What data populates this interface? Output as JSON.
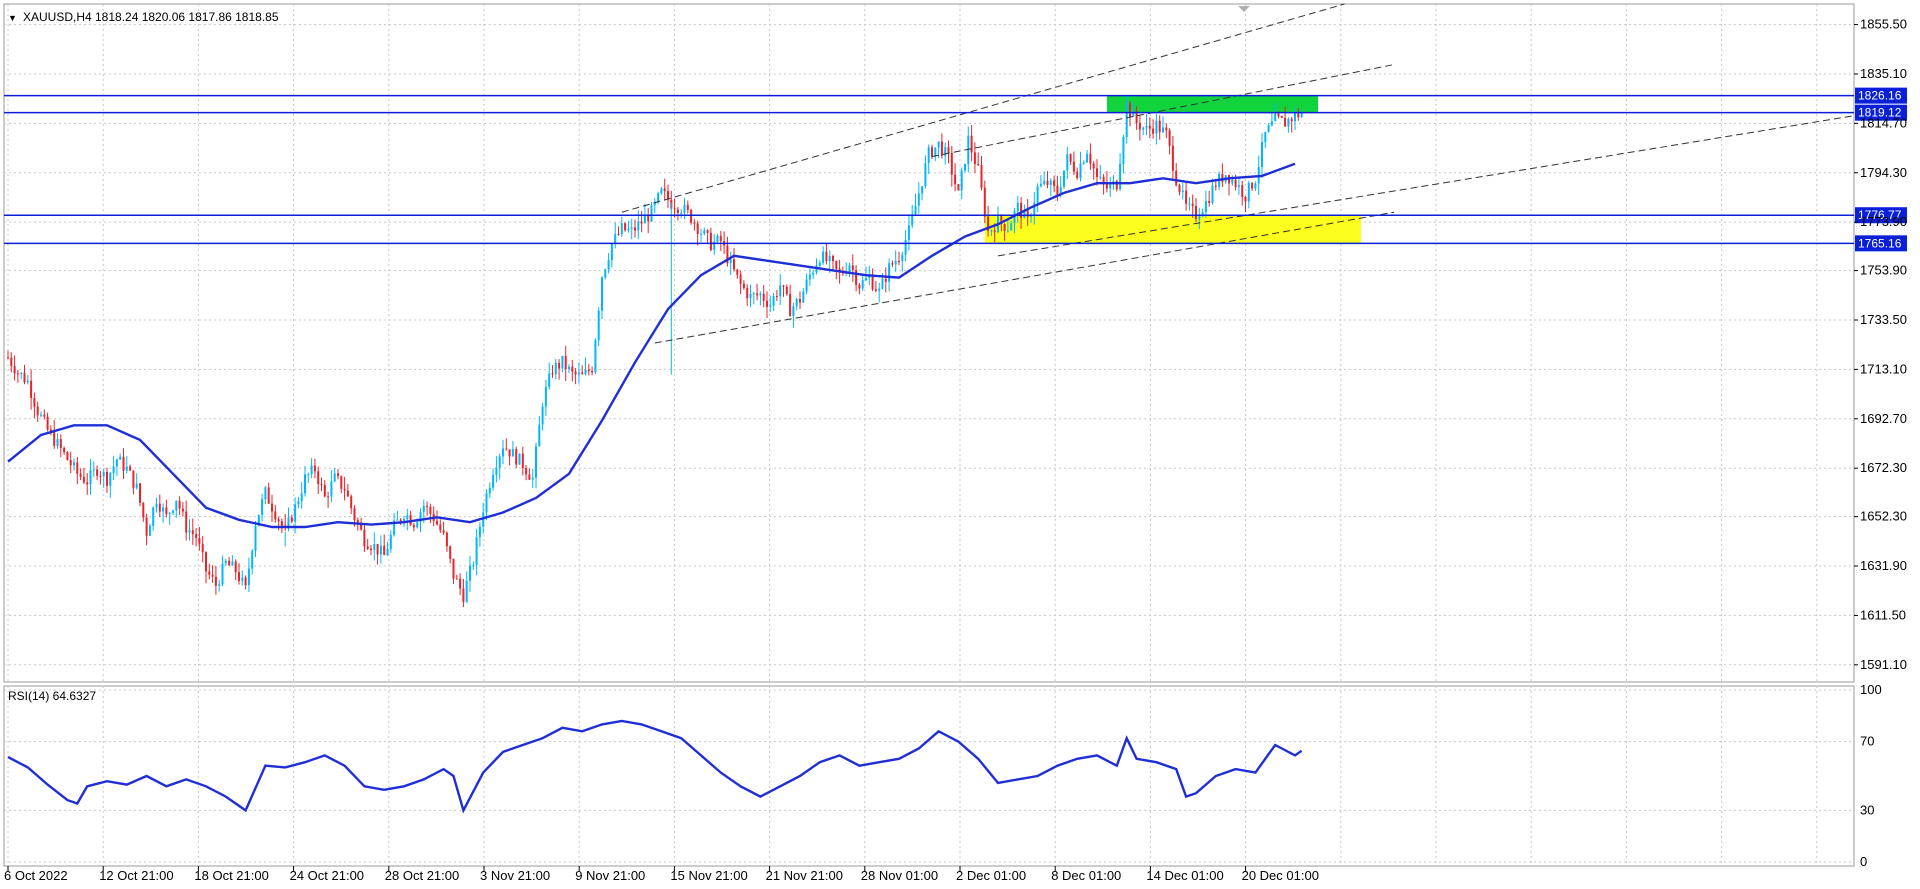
{
  "header": {
    "menu_glyph": "▼",
    "symbol": "XAUUSD,H4",
    "ohlc": "1818.24 1820.06 1817.86 1818.85"
  },
  "indicator": {
    "label": "RSI(14) 64.6327",
    "levels": [
      "100",
      "70",
      "30",
      "0"
    ],
    "level_values": [
      100,
      70,
      30,
      0
    ],
    "value": 64.6327
  },
  "price_axis": {
    "ticks": [
      "1855.50",
      "1835.10",
      "1814.70",
      "1794.30",
      "1773.90",
      "1753.90",
      "1733.50",
      "1713.10",
      "1692.70",
      "1672.30",
      "1652.30",
      "1631.90",
      "1611.50",
      "1591.10"
    ],
    "tick_values": [
      1855.5,
      1835.1,
      1814.7,
      1794.3,
      1773.9,
      1753.9,
      1733.5,
      1713.1,
      1692.7,
      1672.3,
      1652.3,
      1631.9,
      1611.5,
      1591.1
    ]
  },
  "horizontal_lines": [
    {
      "label": "1826.16",
      "price": 1826.16
    },
    {
      "label": "1819.12",
      "price": 1819.12
    },
    {
      "label": "1776.77",
      "price": 1776.77
    },
    {
      "label": "1765.16",
      "price": 1765.16
    }
  ],
  "time_axis": {
    "labels": [
      "6 Oct 2022",
      "12 Oct 21:00",
      "18 Oct 21:00",
      "24 Oct 21:00",
      "28 Oct 21:00",
      "3 Nov 21:00",
      "9 Nov 21:00",
      "15 Nov 21:00",
      "21 Nov 21:00",
      "28 Nov 01:00",
      "2 Dec 01:00",
      "8 Dec 01:00",
      "14 Dec 01:00",
      "20 Dec 01:00"
    ]
  },
  "colors": {
    "bull": "#00b7ff",
    "bear": "#e8232a",
    "ma": "#1f2ed6",
    "level_line": "#0a1fd8",
    "supply_zone": "#11d43d",
    "demand_zone": "#fcff1c",
    "grid": "#c8c8c8",
    "rsi": "#1f2ed6"
  },
  "chart_data": {
    "type": "candlestick",
    "symbol": "XAUUSD",
    "timeframe": "H4",
    "last_ohlc": {
      "open": 1818.24,
      "high": 1820.06,
      "low": 1817.86,
      "close": 1818.85
    },
    "y_range": [
      1584,
      1864
    ],
    "rsi_range": [
      0,
      100
    ],
    "close_path": [
      [
        0,
        1718
      ],
      [
        3,
        1712
      ],
      [
        6,
        1708
      ],
      [
        9,
        1696
      ],
      [
        12,
        1688
      ],
      [
        15,
        1682
      ],
      [
        18,
        1676
      ],
      [
        21,
        1670
      ],
      [
        24,
        1667
      ],
      [
        27,
        1672
      ],
      [
        30,
        1668
      ],
      [
        33,
        1676
      ],
      [
        36,
        1672
      ],
      [
        39,
        1664
      ],
      [
        42,
        1646
      ],
      [
        45,
        1660
      ],
      [
        48,
        1652
      ],
      [
        51,
        1660
      ],
      [
        54,
        1648
      ],
      [
        57,
        1644
      ],
      [
        60,
        1630
      ],
      [
        63,
        1624
      ],
      [
        66,
        1633
      ],
      [
        69,
        1630
      ],
      [
        72,
        1622
      ],
      [
        75,
        1650
      ],
      [
        78,
        1662
      ],
      [
        81,
        1654
      ],
      [
        84,
        1646
      ],
      [
        87,
        1656
      ],
      [
        90,
        1668
      ],
      [
        93,
        1672
      ],
      [
        96,
        1660
      ],
      [
        99,
        1668
      ],
      [
        102,
        1664
      ],
      [
        105,
        1652
      ],
      [
        108,
        1643
      ],
      [
        111,
        1640
      ],
      [
        114,
        1636
      ],
      [
        117,
        1648
      ],
      [
        120,
        1654
      ],
      [
        123,
        1650
      ],
      [
        126,
        1657
      ],
      [
        129,
        1652
      ],
      [
        132,
        1644
      ],
      [
        135,
        1628
      ],
      [
        138,
        1620
      ],
      [
        141,
        1634
      ],
      [
        144,
        1656
      ],
      [
        147,
        1672
      ],
      [
        150,
        1682
      ],
      [
        153,
        1678
      ],
      [
        156,
        1674
      ],
      [
        159,
        1668
      ],
      [
        162,
        1700
      ],
      [
        165,
        1713
      ],
      [
        168,
        1716
      ],
      [
        171,
        1711
      ],
      [
        174,
        1710
      ],
      [
        177,
        1714
      ],
      [
        180,
        1752
      ],
      [
        183,
        1765
      ],
      [
        186,
        1771
      ],
      [
        189,
        1770
      ],
      [
        192,
        1774
      ],
      [
        195,
        1778
      ],
      [
        198,
        1786
      ],
      [
        201,
        1782
      ],
      [
        204,
        1780
      ],
      [
        207,
        1776
      ],
      [
        210,
        1770
      ],
      [
        213,
        1765
      ],
      [
        216,
        1766
      ],
      [
        219,
        1756
      ],
      [
        222,
        1748
      ],
      [
        225,
        1743
      ],
      [
        228,
        1744
      ],
      [
        231,
        1740
      ],
      [
        234,
        1748
      ],
      [
        237,
        1738
      ],
      [
        240,
        1742
      ],
      [
        243,
        1752
      ],
      [
        246,
        1760
      ],
      [
        249,
        1757
      ],
      [
        252,
        1752
      ],
      [
        255,
        1757
      ],
      [
        258,
        1748
      ],
      [
        261,
        1751
      ],
      [
        264,
        1745
      ],
      [
        267,
        1755
      ],
      [
        270,
        1760
      ],
      [
        273,
        1770
      ],
      [
        276,
        1786
      ],
      [
        279,
        1802
      ],
      [
        282,
        1806
      ],
      [
        285,
        1800
      ],
      [
        288,
        1785
      ],
      [
        291,
        1808
      ],
      [
        294,
        1795
      ],
      [
        297,
        1770
      ],
      [
        300,
        1774
      ],
      [
        303,
        1772
      ],
      [
        306,
        1780
      ],
      [
        309,
        1774
      ],
      [
        312,
        1788
      ],
      [
        315,
        1790
      ],
      [
        318,
        1786
      ],
      [
        321,
        1800
      ],
      [
        324,
        1795
      ],
      [
        327,
        1804
      ],
      [
        330,
        1792
      ],
      [
        333,
        1788
      ],
      [
        336,
        1790
      ],
      [
        339,
        1822
      ],
      [
        342,
        1815
      ],
      [
        345,
        1812
      ],
      [
        348,
        1814
      ],
      [
        351,
        1810
      ],
      [
        354,
        1792
      ],
      [
        357,
        1780
      ],
      [
        360,
        1777
      ],
      [
        363,
        1782
      ],
      [
        366,
        1790
      ],
      [
        369,
        1794
      ],
      [
        372,
        1790
      ],
      [
        375,
        1785
      ],
      [
        378,
        1792
      ],
      [
        381,
        1810
      ],
      [
        384,
        1816
      ],
      [
        387,
        1815
      ],
      [
        390,
        1818
      ],
      [
        392,
        1818.85
      ]
    ],
    "moving_average_path": [
      [
        0,
        1675
      ],
      [
        10,
        1686
      ],
      [
        20,
        1690
      ],
      [
        30,
        1690
      ],
      [
        40,
        1684
      ],
      [
        50,
        1670
      ],
      [
        60,
        1656
      ],
      [
        70,
        1651
      ],
      [
        80,
        1648
      ],
      [
        90,
        1648
      ],
      [
        100,
        1650
      ],
      [
        110,
        1649
      ],
      [
        120,
        1650
      ],
      [
        130,
        1652
      ],
      [
        140,
        1650
      ],
      [
        150,
        1654
      ],
      [
        160,
        1660
      ],
      [
        170,
        1670
      ],
      [
        180,
        1692
      ],
      [
        190,
        1716
      ],
      [
        200,
        1738
      ],
      [
        210,
        1752
      ],
      [
        220,
        1760
      ],
      [
        230,
        1758
      ],
      [
        240,
        1756
      ],
      [
        250,
        1754
      ],
      [
        260,
        1752
      ],
      [
        270,
        1751
      ],
      [
        280,
        1760
      ],
      [
        290,
        1768
      ],
      [
        300,
        1773
      ],
      [
        310,
        1780
      ],
      [
        320,
        1786
      ],
      [
        330,
        1790
      ],
      [
        340,
        1790
      ],
      [
        350,
        1792
      ],
      [
        360,
        1790
      ],
      [
        370,
        1792
      ],
      [
        380,
        1793
      ],
      [
        390,
        1798
      ]
    ],
    "rsi_path": [
      [
        0,
        61
      ],
      [
        6,
        55
      ],
      [
        12,
        45
      ],
      [
        18,
        36
      ],
      [
        21,
        34
      ],
      [
        24,
        44
      ],
      [
        30,
        47
      ],
      [
        36,
        45
      ],
      [
        42,
        50
      ],
      [
        48,
        44
      ],
      [
        54,
        48
      ],
      [
        60,
        44
      ],
      [
        66,
        38
      ],
      [
        72,
        30
      ],
      [
        78,
        56
      ],
      [
        84,
        55
      ],
      [
        90,
        58
      ],
      [
        96,
        62
      ],
      [
        102,
        56
      ],
      [
        108,
        44
      ],
      [
        114,
        42
      ],
      [
        120,
        44
      ],
      [
        126,
        48
      ],
      [
        132,
        54
      ],
      [
        135,
        50
      ],
      [
        138,
        30
      ],
      [
        144,
        52
      ],
      [
        150,
        64
      ],
      [
        156,
        68
      ],
      [
        162,
        72
      ],
      [
        168,
        78
      ],
      [
        174,
        76
      ],
      [
        180,
        80
      ],
      [
        186,
        82
      ],
      [
        192,
        80
      ],
      [
        198,
        76
      ],
      [
        204,
        72
      ],
      [
        210,
        62
      ],
      [
        216,
        52
      ],
      [
        222,
        44
      ],
      [
        228,
        38
      ],
      [
        234,
        44
      ],
      [
        240,
        50
      ],
      [
        246,
        58
      ],
      [
        252,
        62
      ],
      [
        258,
        56
      ],
      [
        264,
        58
      ],
      [
        270,
        60
      ],
      [
        276,
        66
      ],
      [
        282,
        76
      ],
      [
        288,
        70
      ],
      [
        294,
        60
      ],
      [
        300,
        46
      ],
      [
        306,
        48
      ],
      [
        312,
        50
      ],
      [
        318,
        56
      ],
      [
        324,
        60
      ],
      [
        330,
        62
      ],
      [
        336,
        56
      ],
      [
        339,
        72
      ],
      [
        342,
        60
      ],
      [
        348,
        58
      ],
      [
        354,
        54
      ],
      [
        357,
        38
      ],
      [
        360,
        40
      ],
      [
        366,
        50
      ],
      [
        372,
        54
      ],
      [
        378,
        52
      ],
      [
        384,
        68
      ],
      [
        390,
        62
      ],
      [
        392,
        64.6327
      ]
    ],
    "trendlines": [
      {
        "from": [
          186,
          1778
        ],
        "to": [
          405,
          1864
        ]
      },
      {
        "from": [
          196,
          1724
        ],
        "to": [
          420,
          1778
        ]
      },
      {
        "from": [
          280,
          1801
        ],
        "to": [
          420,
          1839
        ]
      },
      {
        "from": [
          300,
          1760
        ],
        "to": [
          560,
          1818
        ]
      }
    ],
    "zones": [
      {
        "name": "supply",
        "bar_from": 333,
        "bar_to": 397,
        "price_low": 1819.12,
        "price_high": 1826.16
      },
      {
        "name": "demand",
        "bar_from": 296,
        "bar_to": 410,
        "price_low": 1765.16,
        "price_high": 1776.77
      }
    ],
    "bars_visible": 560
  }
}
